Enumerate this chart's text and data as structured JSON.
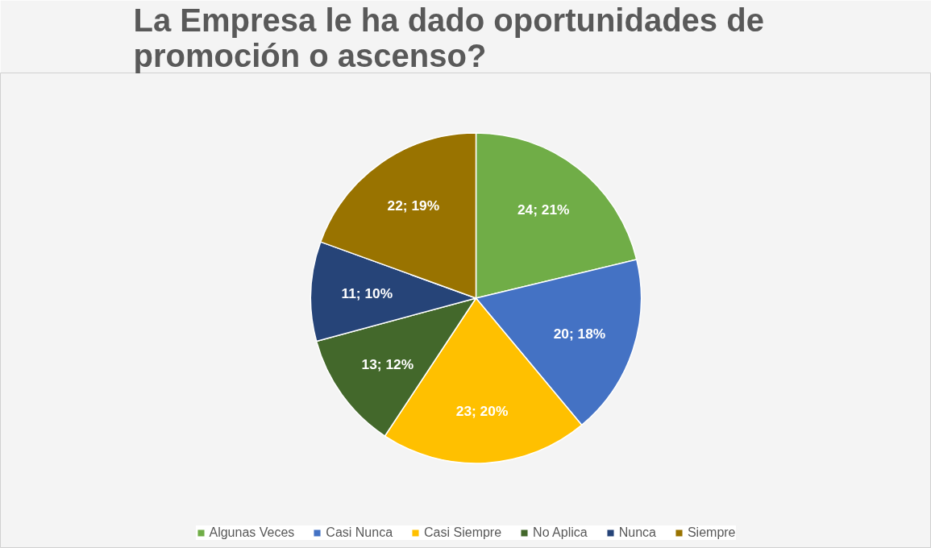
{
  "chart_data": {
    "type": "pie",
    "title": "La Empresa le ha dado oportunidades de promoción o ascenso?",
    "categories": [
      "Algunas Veces",
      "Casi Nunca",
      "Casi Siempre",
      "No Aplica",
      "Nunca",
      "Siempre"
    ],
    "values": [
      24,
      20,
      23,
      13,
      11,
      22
    ],
    "colors": [
      "#70ad47",
      "#4472c4",
      "#ffc000",
      "#43682b",
      "#264478",
      "#997300"
    ],
    "value_labels": [
      "24; 21%",
      "20; 18%",
      "23; 20%",
      "13; 12%",
      "11; 10%",
      "22; 19%"
    ],
    "legend": "bottom"
  }
}
